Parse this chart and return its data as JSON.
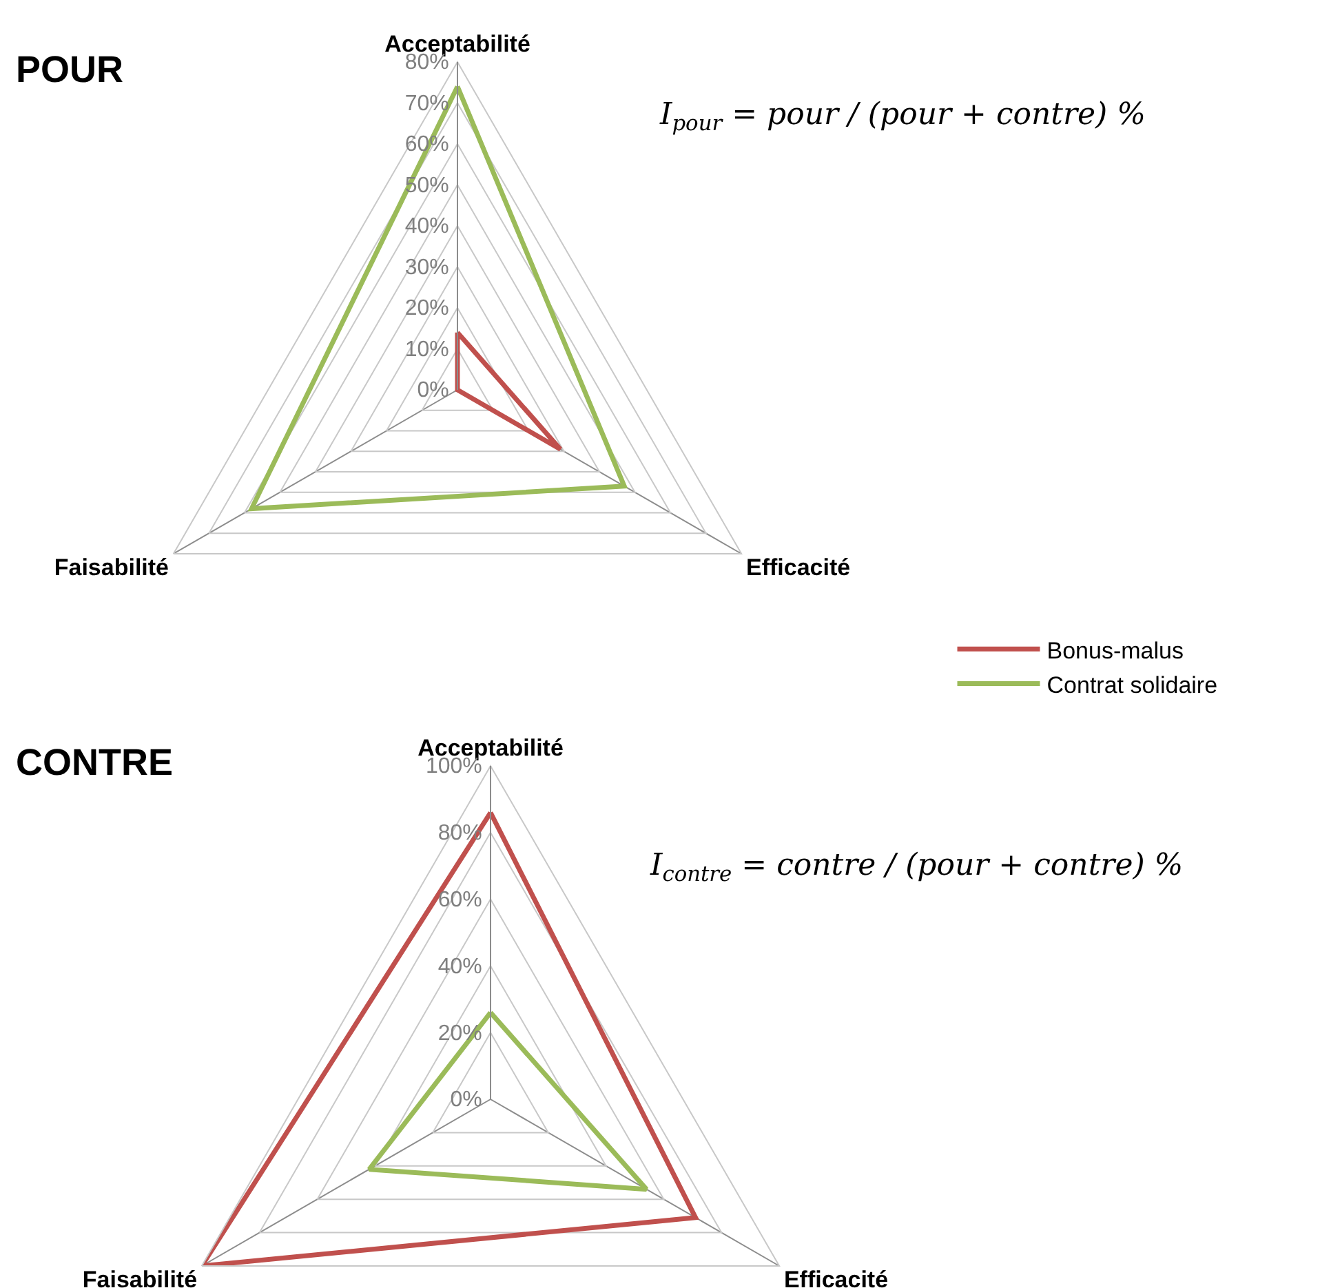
{
  "chart_data": [
    {
      "type": "radar",
      "title": "POUR",
      "categories": [
        "Acceptabilité",
        "Efficacité",
        "Faisabilité"
      ],
      "series": [
        {
          "name": "Bonus-malus",
          "color": "#c0504d",
          "values": [
            14,
            29,
            0
          ]
        },
        {
          "name": "Contrat solidaire",
          "color": "#9bbb59",
          "values": [
            74,
            47,
            58
          ]
        }
      ],
      "ylim": [
        0,
        80
      ],
      "yticks": [
        {
          "value": 0,
          "label": "0%"
        },
        {
          "value": 10,
          "label": "10%"
        },
        {
          "value": 20,
          "label": "20%"
        },
        {
          "value": 30,
          "label": "30%"
        },
        {
          "value": 40,
          "label": "40%"
        },
        {
          "value": 50,
          "label": "50%"
        },
        {
          "value": 60,
          "label": "60%"
        },
        {
          "value": 70,
          "label": "70%"
        },
        {
          "value": 80,
          "label": "80%"
        }
      ],
      "grid": true,
      "legend": "bottom right",
      "line_style": "solid",
      "annotations": [
        "I$_{pour}$ = pour / (pour + contre) %"
      ]
    },
    {
      "type": "radar",
      "title": "CONTRE",
      "categories": [
        "Acceptabilité",
        "Efficacité",
        "Faisabilité"
      ],
      "series": [
        {
          "color": "#c0504d",
          "values": [
            86,
            71,
            100
          ]
        },
        {
          "color": "#9bbb59",
          "values": [
            26,
            54,
            42
          ]
        }
      ],
      "ylim": [
        0,
        100
      ],
      "yticks": [
        {
          "value": 0,
          "label": "0%"
        },
        {
          "value": 20,
          "label": "20%"
        },
        {
          "value": 40,
          "label": "40%"
        },
        {
          "value": 60,
          "label": "60%"
        },
        {
          "value": 80,
          "label": "80%"
        },
        {
          "value": 100,
          "label": "100%"
        }
      ],
      "grid": true,
      "legend": false,
      "line_style": "solid",
      "annotations": [
        "I$_{contre}$ = contre / (pour + contre) %"
      ]
    }
  ]
}
